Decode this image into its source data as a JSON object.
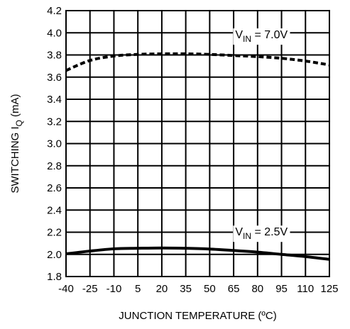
{
  "chart_data": {
    "type": "line",
    "xlabel": "JUNCTION TEMPERATURE (ºC)",
    "ylabel_main": "SWITCHING I",
    "ylabel_sub": "Q",
    "ylabel_unit": "(mA)",
    "x_ticks": [
      "-40",
      "-25",
      "-10",
      "5",
      "20",
      "35",
      "50",
      "65",
      "80",
      "95",
      "110",
      "125"
    ],
    "y_ticks": [
      "1.8",
      "2.0",
      "2.2",
      "2.4",
      "2.6",
      "2.8",
      "3.0",
      "3.2",
      "3.4",
      "3.6",
      "3.8",
      "4.0",
      "4.2"
    ],
    "xlim": [
      -40,
      125
    ],
    "ylim": [
      1.8,
      4.2
    ],
    "grid": true,
    "series": [
      {
        "name": "VIN = 7.0V",
        "style": "dashed",
        "x": [
          -40,
          -25,
          -10,
          5,
          20,
          35,
          50,
          65,
          80,
          95,
          110,
          125
        ],
        "y": [
          3.66,
          3.75,
          3.79,
          3.805,
          3.81,
          3.81,
          3.805,
          3.795,
          3.785,
          3.77,
          3.745,
          3.71
        ]
      },
      {
        "name": "VIN = 2.5V",
        "style": "solid",
        "x": [
          -40,
          -25,
          -10,
          5,
          20,
          35,
          50,
          65,
          80,
          95,
          110,
          125
        ],
        "y": [
          2.005,
          2.03,
          2.05,
          2.055,
          2.058,
          2.055,
          2.048,
          2.035,
          2.02,
          2.0,
          1.98,
          1.955
        ]
      }
    ],
    "annotations": [
      {
        "prefix": "V",
        "sub": "IN",
        "suffix": " = 7.0V",
        "x": 66,
        "y": 3.95
      },
      {
        "prefix": "V",
        "sub": "IN",
        "suffix": " = 2.5V",
        "x": 66,
        "y": 2.17
      }
    ]
  }
}
